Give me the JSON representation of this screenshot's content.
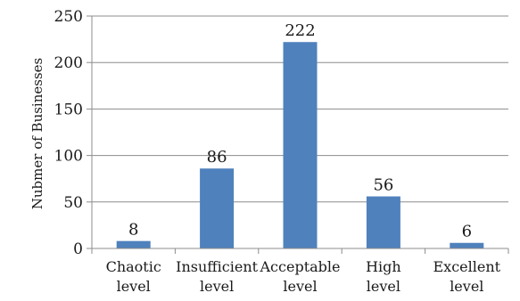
{
  "chart_data": {
    "type": "bar",
    "categories": [
      [
        "Chaotic",
        "level"
      ],
      [
        "Insufficient",
        "level"
      ],
      [
        "Acceptable",
        "level"
      ],
      [
        "High",
        "level"
      ],
      [
        "Excellent",
        "level"
      ]
    ],
    "values": [
      8,
      86,
      222,
      56,
      6
    ],
    "data_labels": [
      "8",
      "86",
      "222",
      "56",
      "6"
    ],
    "title": "",
    "xlabel": "",
    "ylabel": "Nubmer of Businesses",
    "ylim": [
      0,
      250
    ],
    "yticks": [
      0,
      50,
      100,
      150,
      200,
      250
    ],
    "ytick_labels": [
      "0",
      "50",
      "100",
      "150",
      "200",
      "250"
    ],
    "grid": true,
    "legend": "none",
    "bar_color": "#4f81bd"
  }
}
